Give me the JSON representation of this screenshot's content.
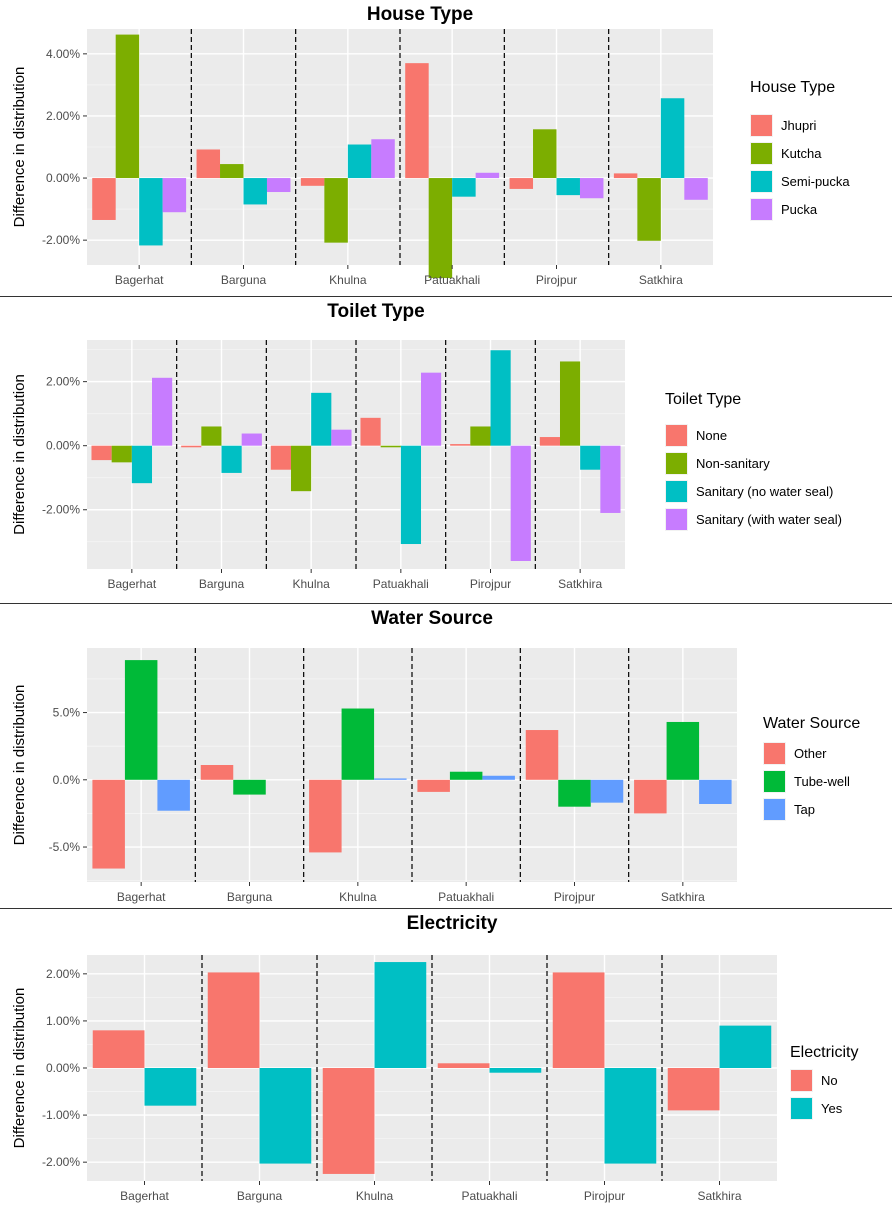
{
  "chart_data": [
    {
      "type": "bar",
      "title": "House Type",
      "xlabel": "",
      "ylabel": "Difference in distribution",
      "categories": [
        "Bagerhat",
        "Barguna",
        "Khulna",
        "Patuakhali",
        "Pirojpur",
        "Satkhira"
      ],
      "ylim": [
        -2.8,
        4.8
      ],
      "y_ticks": [
        -2,
        0,
        2,
        4
      ],
      "y_tick_labels": [
        "-2.00%",
        "0.00%",
        "2.00%",
        "4.00%"
      ],
      "legend_title": "House Type",
      "legend_position": "right",
      "series": [
        {
          "name": "Jhupri",
          "color": "#F8766D",
          "values": [
            -1.35,
            0.92,
            -0.25,
            3.7,
            -0.35,
            0.15
          ]
        },
        {
          "name": "Kutcha",
          "color": "#7CAE00",
          "values": [
            4.62,
            0.45,
            -2.08,
            -3.22,
            1.57,
            -2.02
          ]
        },
        {
          "name": "Semi-pucka",
          "color": "#00BFC4",
          "values": [
            -2.17,
            -0.85,
            1.08,
            -0.6,
            -0.55,
            2.57
          ]
        },
        {
          "name": "Pucka",
          "color": "#C77CFF",
          "values": [
            -1.1,
            -0.45,
            1.25,
            0.17,
            -0.65,
            -0.7
          ]
        }
      ]
    },
    {
      "type": "bar",
      "title": "Toilet Type",
      "xlabel": "",
      "ylabel": "Difference in distribution",
      "categories": [
        "Bagerhat",
        "Barguna",
        "Khulna",
        "Patuakhali",
        "Pirojpur",
        "Satkhira"
      ],
      "ylim": [
        -3.85,
        3.3
      ],
      "y_ticks": [
        -2,
        0,
        2
      ],
      "y_tick_labels": [
        "-2.00%",
        "0.00%",
        "2.00%"
      ],
      "legend_title": "Toilet Type",
      "legend_position": "right",
      "series": [
        {
          "name": "None",
          "color": "#F8766D",
          "values": [
            -0.45,
            -0.05,
            -0.75,
            0.87,
            0.05,
            0.27
          ]
        },
        {
          "name": "Non-sanitary",
          "color": "#7CAE00",
          "values": [
            -0.52,
            0.6,
            -1.42,
            -0.05,
            0.6,
            2.63
          ]
        },
        {
          "name": "Sanitary (no water seal)",
          "color": "#00BFC4",
          "values": [
            -1.17,
            -0.85,
            1.65,
            -3.07,
            2.98,
            -0.75
          ]
        },
        {
          "name": "Sanitary (with water seal)",
          "color": "#C77CFF",
          "values": [
            2.12,
            0.38,
            0.5,
            2.28,
            -3.6,
            -2.1
          ]
        }
      ]
    },
    {
      "type": "bar",
      "title": "Water Source",
      "xlabel": "",
      "ylabel": "Difference in distribution",
      "categories": [
        "Bagerhat",
        "Barguna",
        "Khulna",
        "Patuakhali",
        "Pirojpur",
        "Satkhira"
      ],
      "ylim": [
        -7.6,
        9.8
      ],
      "y_ticks": [
        -5,
        0,
        5
      ],
      "y_tick_labels": [
        "-5.0%",
        "0.0%",
        "5.0%"
      ],
      "legend_title": "Water Source",
      "legend_position": "right",
      "series": [
        {
          "name": "Other",
          "color": "#F8766D",
          "values": [
            -6.6,
            1.1,
            -5.4,
            -0.9,
            3.7,
            -2.5
          ]
        },
        {
          "name": "Tube-well",
          "color": "#00BA38",
          "values": [
            8.9,
            -1.1,
            5.3,
            0.6,
            -2.0,
            4.3
          ]
        },
        {
          "name": "Tap",
          "color": "#619CFF",
          "values": [
            -2.3,
            0.0,
            0.1,
            0.3,
            -1.7,
            -1.8
          ]
        }
      ]
    },
    {
      "type": "bar",
      "title": "Electricity",
      "xlabel": "",
      "ylabel": "Difference in distribution",
      "categories": [
        "Bagerhat",
        "Barguna",
        "Khulna",
        "Patuakhali",
        "Pirojpur",
        "Satkhira"
      ],
      "ylim": [
        -2.4,
        2.4
      ],
      "y_ticks": [
        -2,
        -1,
        0,
        1,
        2
      ],
      "y_tick_labels": [
        "-2.00%",
        "-1.00%",
        "0.00%",
        "1.00%",
        "2.00%"
      ],
      "legend_title": "Electricity",
      "legend_position": "right",
      "series": [
        {
          "name": "No",
          "color": "#F8766D",
          "values": [
            0.8,
            2.03,
            -2.25,
            0.1,
            2.03,
            -0.9
          ]
        },
        {
          "name": "Yes",
          "color": "#00BFC4",
          "values": [
            -0.8,
            -2.03,
            2.25,
            -0.1,
            -2.03,
            0.9
          ]
        }
      ]
    }
  ]
}
